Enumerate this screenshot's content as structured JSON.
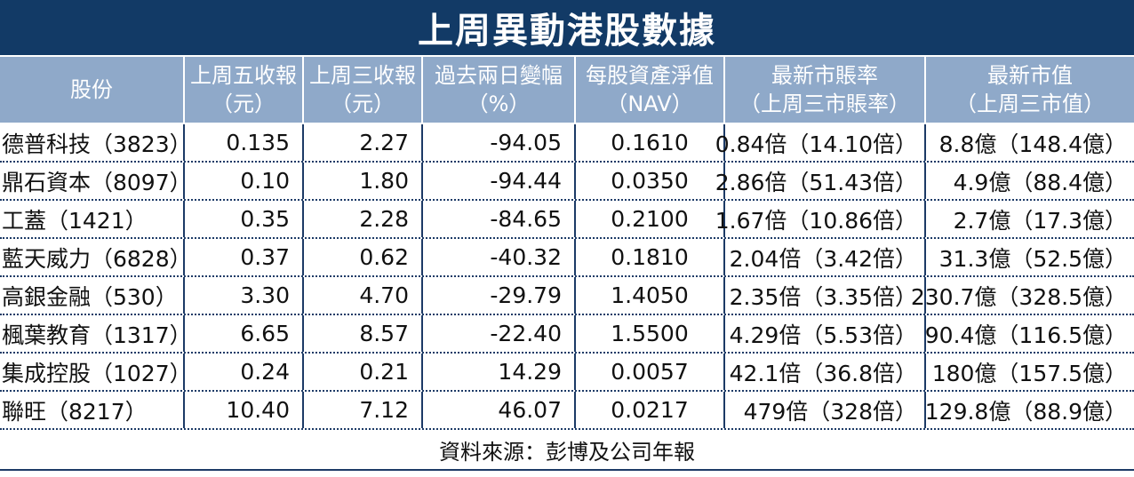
{
  "title": "上周異動港股數據",
  "headers": [
    {
      "line1": "股份",
      "line2": ""
    },
    {
      "line1": "上周五收報",
      "line2": "（元）"
    },
    {
      "line1": "上周三收報",
      "line2": "（元）"
    },
    {
      "line1": "過去兩日變幅",
      "line2": "（%）"
    },
    {
      "line1": "每股資產淨值",
      "line2": "（NAV）"
    },
    {
      "line1": "最新市賬率",
      "line2": "（上周三市賬率）"
    },
    {
      "line1": "最新市值",
      "line2": "（上周三市值）"
    }
  ],
  "rows": [
    {
      "name": "德普科技（3823）",
      "fri": "0.135",
      "wed": "2.27",
      "change": "-94.05",
      "nav": "0.1610",
      "pb": "0.84倍（14.10倍）",
      "mcap": "8.8億（148.4億）"
    },
    {
      "name": "鼎石資本（8097）",
      "fri": "0.10",
      "wed": "1.80",
      "change": "-94.44",
      "nav": "0.0350",
      "pb": "2.86倍（51.43倍）",
      "mcap": "4.9億（88.4億）"
    },
    {
      "name": "工蓋（1421）",
      "fri": "0.35",
      "wed": "2.28",
      "change": "-84.65",
      "nav": "0.2100",
      "pb": "1.67倍（10.86倍）",
      "mcap": "2.7億（17.3億）"
    },
    {
      "name": "藍天威力（6828）",
      "fri": "0.37",
      "wed": "0.62",
      "change": "-40.32",
      "nav": "0.1810",
      "pb": "2.04倍（3.42倍）",
      "mcap": "31.3億（52.5億）"
    },
    {
      "name": "高銀金融（530）",
      "fri": "3.30",
      "wed": "4.70",
      "change": "-29.79",
      "nav": "1.4050",
      "pb": "2.35倍（3.35倍）",
      "mcap": "230.7億（328.5億）"
    },
    {
      "name": "楓葉教育（1317）",
      "fri": "6.65",
      "wed": "8.57",
      "change": "-22.40",
      "nav": "1.5500",
      "pb": "4.29倍（5.53倍）",
      "mcap": "90.4億（116.5億）"
    },
    {
      "name": "集成控股（1027）",
      "fri": "0.24",
      "wed": "0.21",
      "change": "14.29",
      "nav": "0.0057",
      "pb": "42.1倍（36.8倍）",
      "mcap": "180億（157.5億）"
    },
    {
      "name": "聯旺（8217）",
      "fri": "10.40",
      "wed": "7.12",
      "change": "46.07",
      "nav": "0.0217",
      "pb": "479倍（328倍）",
      "mcap": "129.8億（88.9億）"
    }
  ],
  "source": "資料來源：彭博及公司年報",
  "colors": {
    "title_bg": "#123a66",
    "header_bg": "#8fa9c9",
    "rule": "#1c3a66"
  }
}
